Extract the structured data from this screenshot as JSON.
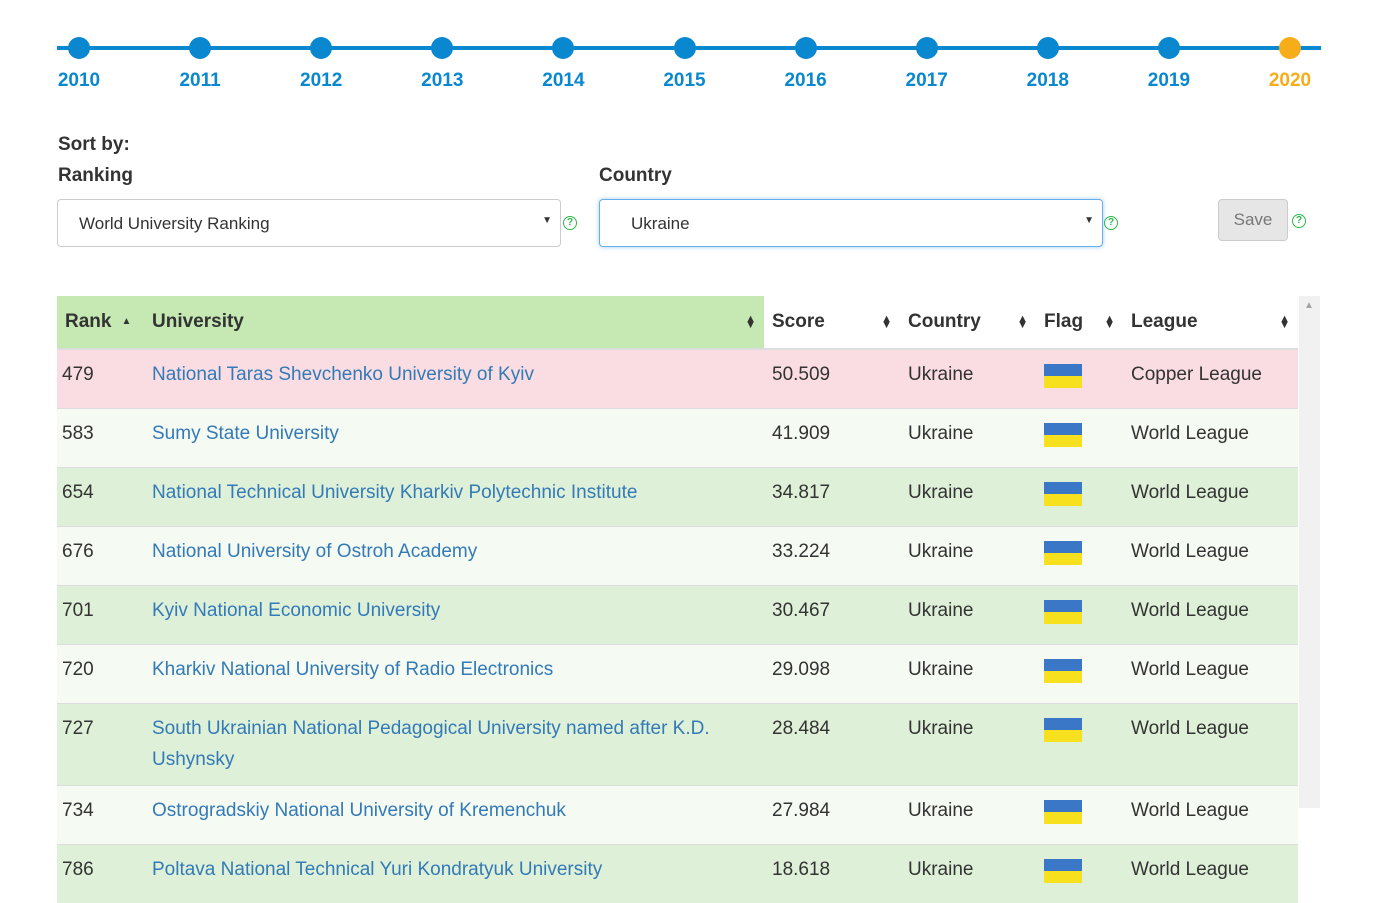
{
  "timeline": {
    "years": [
      "2010",
      "2011",
      "2012",
      "2013",
      "2014",
      "2015",
      "2016",
      "2017",
      "2018",
      "2019",
      "2020"
    ],
    "active": "2020",
    "colors": {
      "line": "#0a88cf",
      "active": "#f7ad1a"
    }
  },
  "controls": {
    "sort_by_label": "Sort by:",
    "ranking_label": "Ranking",
    "ranking_value": "World University Ranking",
    "country_label": "Country",
    "country_value": "Ukraine",
    "save_label": "Save",
    "help_glyph": "?"
  },
  "table": {
    "headers": {
      "rank": "Rank",
      "university": "University",
      "score": "Score",
      "country": "Country",
      "flag": "Flag",
      "league": "League"
    },
    "rows": [
      {
        "rank": "479",
        "university": "National Taras Shevchenko University of Kyiv",
        "score": "50.509",
        "country": "Ukraine",
        "flag": "ukraine-flag-icon",
        "league": "Copper League"
      },
      {
        "rank": "583",
        "university": "Sumy State University",
        "score": "41.909",
        "country": "Ukraine",
        "flag": "ukraine-flag-icon",
        "league": "World League"
      },
      {
        "rank": "654",
        "university": "National Technical University Kharkiv Polytechnic Institute",
        "score": "34.817",
        "country": "Ukraine",
        "flag": "ukraine-flag-icon",
        "league": "World League"
      },
      {
        "rank": "676",
        "university": "National University of Ostroh Academy",
        "score": "33.224",
        "country": "Ukraine",
        "flag": "ukraine-flag-icon",
        "league": "World League"
      },
      {
        "rank": "701",
        "university": "Kyiv National Economic University",
        "score": "30.467",
        "country": "Ukraine",
        "flag": "ukraine-flag-icon",
        "league": "World League"
      },
      {
        "rank": "720",
        "university": "Kharkiv National University of Radio Electronics",
        "score": "29.098",
        "country": "Ukraine",
        "flag": "ukraine-flag-icon",
        "league": "World League"
      },
      {
        "rank": "727",
        "university": "South Ukrainian National Pedagogical University named after K.D. Ushynsky",
        "score": "28.484",
        "country": "Ukraine",
        "flag": "ukraine-flag-icon",
        "league": "World League"
      },
      {
        "rank": "734",
        "university": "Ostrogradskiy National University of Kremenchuk",
        "score": "27.984",
        "country": "Ukraine",
        "flag": "ukraine-flag-icon",
        "league": "World League"
      },
      {
        "rank": "786",
        "university": "Poltava National Technical Yuri Kondratyuk University",
        "score": "18.618",
        "country": "Ukraine",
        "flag": "ukraine-flag-icon",
        "league": "World League"
      }
    ],
    "colors": {
      "sorted_header": "#c6e9b4",
      "row_odd": "#dff0d8",
      "row_even": "#f5faf3",
      "row_highlight": "#f9dde2",
      "link": "#337ab7"
    }
  }
}
